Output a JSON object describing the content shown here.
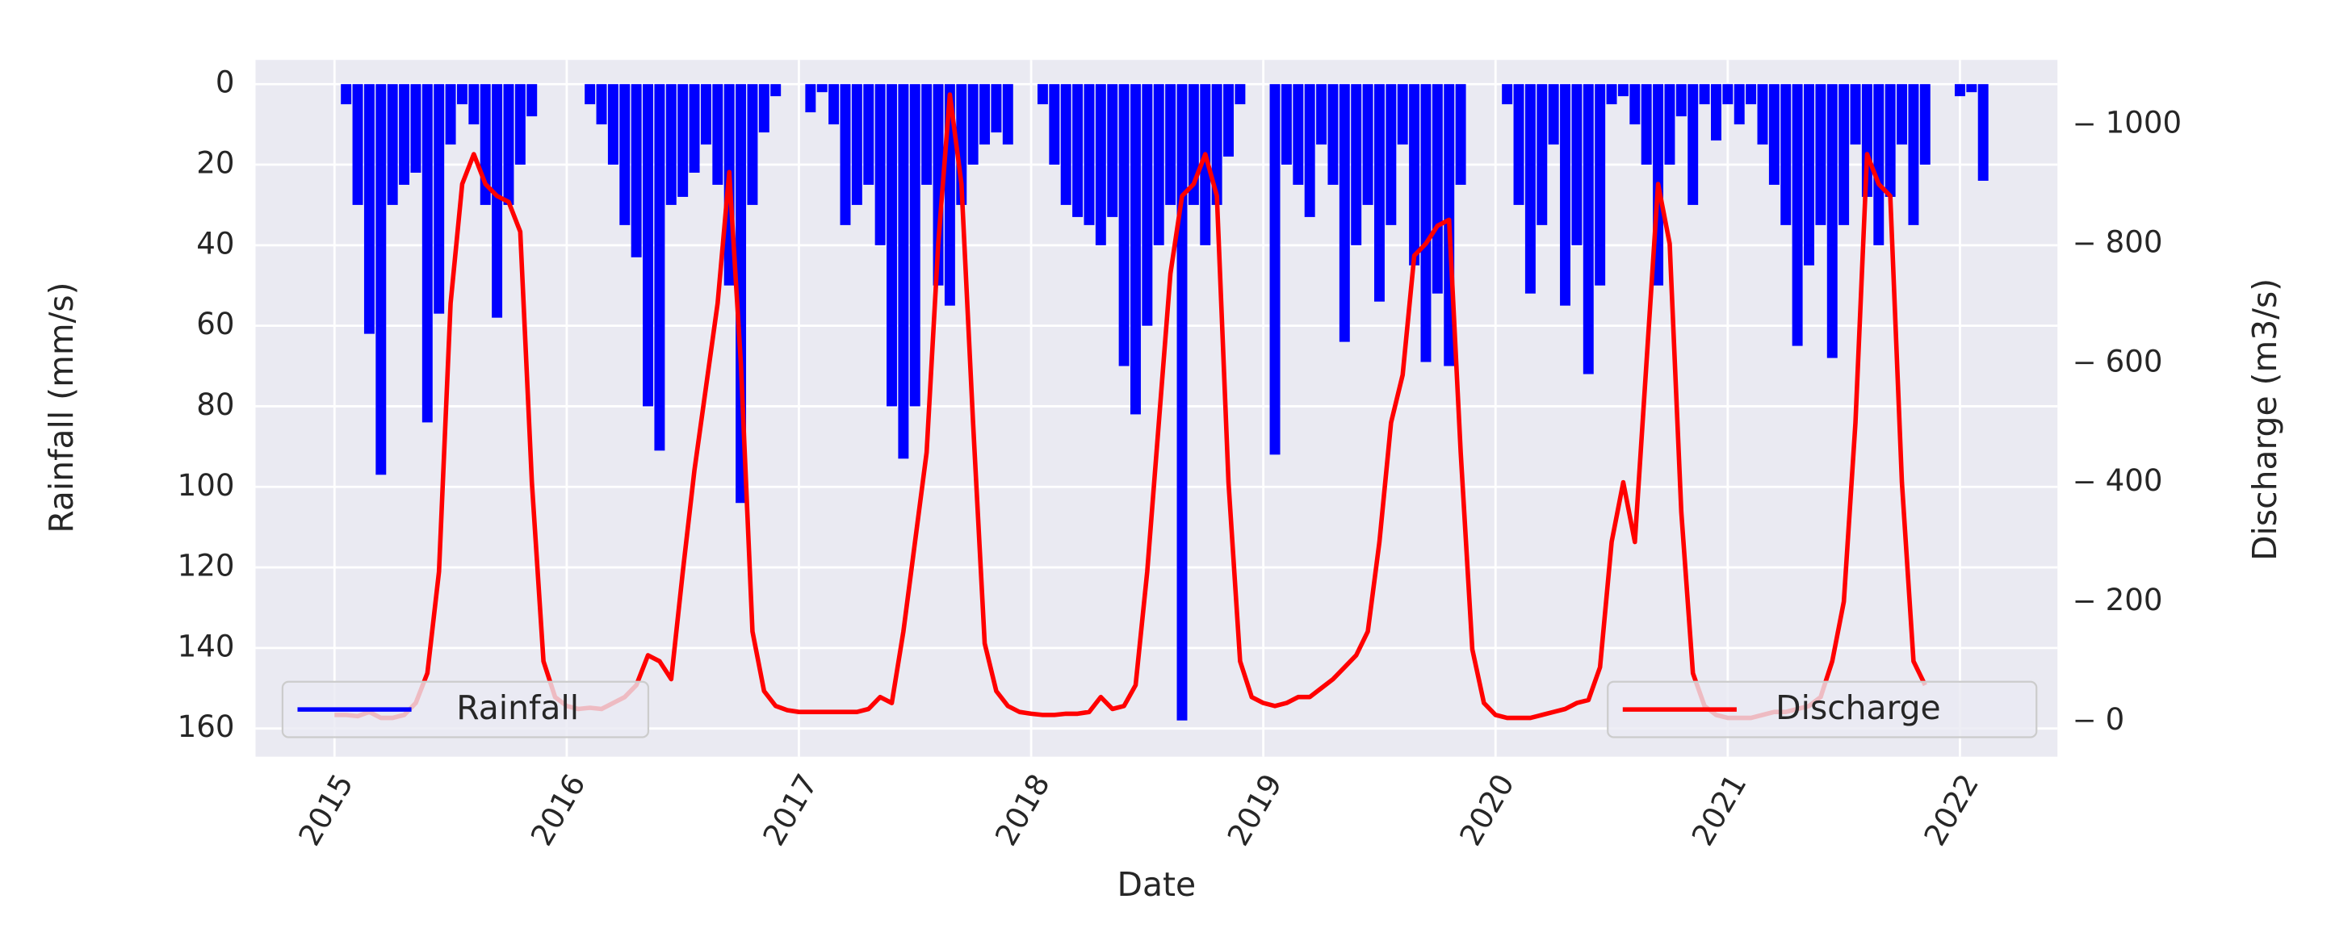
{
  "chart_data": {
    "type": "bar_line_dual",
    "xlabel": "Date",
    "ylabel": "Rainfall (mm/s)",
    "y2label": "Discharge (m3/s)",
    "xlim": [
      2014.66,
      2022.42
    ],
    "xticks": [
      2015,
      2016,
      2017,
      2018,
      2019,
      2020,
      2021,
      2022
    ],
    "ylim": [
      167,
      -6
    ],
    "yticks": [
      0,
      20,
      40,
      60,
      80,
      100,
      120,
      140,
      160
    ],
    "y2lim": [
      -60,
      1108
    ],
    "y2ticks": [
      0,
      200,
      400,
      600,
      800,
      1000
    ],
    "grid": true,
    "background": "#eaeaf2",
    "x": [
      2015,
      2015.05,
      2015.1,
      2015.15,
      2015.2,
      2015.25,
      2015.3,
      2015.35,
      2015.4,
      2015.45,
      2015.5,
      2015.55,
      2015.6,
      2015.65,
      2015.7,
      2015.75,
      2015.8,
      2015.85,
      2015.9,
      2015.95,
      2016,
      2016.05,
      2016.1,
      2016.15,
      2016.2,
      2016.25,
      2016.3,
      2016.35,
      2016.4,
      2016.45,
      2016.5,
      2016.55,
      2016.6,
      2016.65,
      2016.7,
      2016.75,
      2016.8,
      2016.85,
      2016.9,
      2016.95,
      2017,
      2017.05,
      2017.1,
      2017.15,
      2017.2,
      2017.25,
      2017.3,
      2017.35,
      2017.4,
      2017.45,
      2017.5,
      2017.55,
      2017.6,
      2017.65,
      2017.7,
      2017.75,
      2017.8,
      2017.85,
      2017.9,
      2017.95,
      2018,
      2018.05,
      2018.1,
      2018.15,
      2018.2,
      2018.25,
      2018.3,
      2018.35,
      2018.4,
      2018.45,
      2018.5,
      2018.55,
      2018.6,
      2018.65,
      2018.7,
      2018.75,
      2018.8,
      2018.85,
      2018.9,
      2018.95,
      2019,
      2019.05,
      2019.1,
      2019.15,
      2019.2,
      2019.25,
      2019.3,
      2019.35,
      2019.4,
      2019.45,
      2019.5,
      2019.55,
      2019.6,
      2019.65,
      2019.7,
      2019.75,
      2019.8,
      2019.85,
      2019.9,
      2019.95,
      2020,
      2020.05,
      2020.1,
      2020.15,
      2020.2,
      2020.25,
      2020.3,
      2020.35,
      2020.4,
      2020.45,
      2020.5,
      2020.55,
      2020.6,
      2020.65,
      2020.7,
      2020.75,
      2020.8,
      2020.85,
      2020.9,
      2020.95,
      2021,
      2021.05,
      2021.1,
      2021.15,
      2021.2,
      2021.25,
      2021.3,
      2021.35,
      2021.4,
      2021.45,
      2021.5,
      2021.55,
      2021.6,
      2021.65,
      2021.7,
      2021.75,
      2021.8,
      2021.85,
      2021.9,
      2021.95,
      2022,
      2022.05,
      2022.1
    ],
    "series": [
      {
        "name": "Rainfall",
        "color": "#0000ff",
        "kind": "bar",
        "legend": "lower left",
        "values": [
          0,
          5,
          30,
          62,
          97,
          30,
          25,
          22,
          84,
          57,
          15,
          5,
          10,
          30,
          58,
          30,
          20,
          8,
          0,
          0,
          0,
          0,
          5,
          10,
          20,
          35,
          43,
          80,
          91,
          30,
          28,
          22,
          15,
          25,
          50,
          104,
          30,
          12,
          3,
          0,
          0,
          7,
          2,
          10,
          35,
          30,
          25,
          40,
          80,
          93,
          80,
          25,
          50,
          55,
          30,
          20,
          15,
          12,
          15,
          0,
          0,
          5,
          20,
          30,
          33,
          35,
          40,
          33,
          70,
          82,
          60,
          40,
          30,
          158,
          30,
          40,
          30,
          18,
          5,
          0,
          0,
          92,
          20,
          25,
          33,
          15,
          25,
          64,
          40,
          30,
          54,
          35,
          15,
          45,
          69,
          52,
          70,
          25,
          0,
          0,
          0,
          5,
          30,
          52,
          35,
          15,
          55,
          40,
          72,
          50,
          5,
          3,
          10,
          20,
          50,
          20,
          8,
          30,
          5,
          14,
          5,
          10,
          5,
          15,
          25,
          35,
          65,
          45,
          35,
          68,
          35,
          15,
          28,
          40,
          28,
          15,
          35,
          20,
          0,
          0,
          3,
          2,
          24
        ]
      },
      {
        "name": "Discharge",
        "color": "#ff0000",
        "kind": "line",
        "axis": "y2",
        "legend": "lower right",
        "values": [
          10,
          10,
          8,
          15,
          5,
          5,
          10,
          30,
          80,
          250,
          700,
          900,
          950,
          900,
          880,
          870,
          820,
          400,
          100,
          40,
          25,
          20,
          22,
          20,
          30,
          40,
          60,
          110,
          100,
          70,
          250,
          420,
          560,
          700,
          920,
          600,
          150,
          50,
          25,
          18,
          15,
          15,
          15,
          15,
          15,
          15,
          20,
          40,
          30,
          150,
          300,
          450,
          800,
          1050,
          900,
          500,
          130,
          50,
          25,
          15,
          12,
          10,
          10,
          12,
          12,
          15,
          40,
          20,
          25,
          60,
          250,
          500,
          750,
          880,
          900,
          950,
          880,
          400,
          100,
          40,
          30,
          25,
          30,
          40,
          40,
          55,
          70,
          90,
          110,
          150,
          300,
          500,
          580,
          780,
          800,
          830,
          840,
          450,
          120,
          30,
          10,
          5,
          5,
          5,
          10,
          15,
          20,
          30,
          35,
          90,
          300,
          400,
          300,
          600,
          900,
          800,
          350,
          80,
          25,
          10,
          5,
          5,
          5,
          10,
          15,
          15,
          20,
          25,
          40,
          100,
          200,
          500,
          950,
          900,
          880,
          400,
          100,
          60,
          null,
          null,
          null,
          null,
          null
        ]
      }
    ]
  }
}
